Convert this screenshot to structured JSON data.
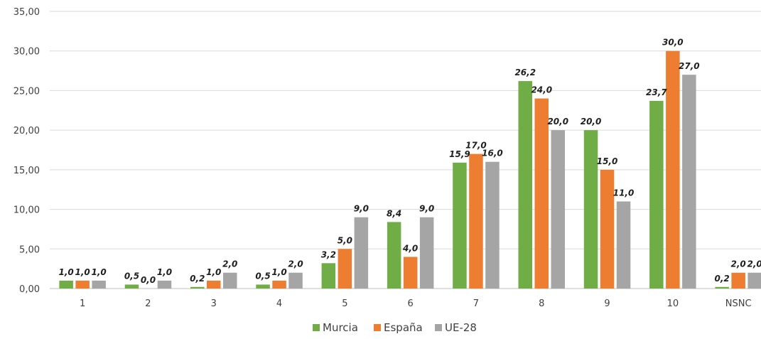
{
  "chart_data": {
    "type": "bar",
    "title": "",
    "xlabel": "",
    "ylabel": "",
    "categories": [
      "1",
      "2",
      "3",
      "4",
      "5",
      "6",
      "7",
      "8",
      "9",
      "10",
      "NSNC"
    ],
    "series": [
      {
        "name": "Murcia",
        "color": "#70ad47",
        "values": [
          1.0,
          0.5,
          0.2,
          0.5,
          3.2,
          8.4,
          15.9,
          26.2,
          20.0,
          23.7,
          0.2
        ],
        "labels": [
          "1,0",
          "0,5",
          "0,2",
          "0,5",
          "3,2",
          "8,4",
          "15,9",
          "26,2",
          "20,0",
          "23,7",
          "0,2"
        ]
      },
      {
        "name": "España",
        "color": "#ed7d31",
        "values": [
          1.0,
          0.0,
          1.0,
          1.0,
          5.0,
          4.0,
          17.0,
          24.0,
          15.0,
          30.0,
          2.0
        ],
        "labels": [
          "1,0",
          "0,0",
          "1,0",
          "1,0",
          "5,0",
          "4,0",
          "17,0",
          "24,0",
          "15,0",
          "30,0",
          "2,0"
        ]
      },
      {
        "name": "UE-28",
        "color": "#a5a5a5",
        "values": [
          1.0,
          1.0,
          2.0,
          2.0,
          9.0,
          9.0,
          16.0,
          20.0,
          11.0,
          27.0,
          2.0
        ],
        "labels": [
          "1,0",
          "1,0",
          "2,0",
          "2,0",
          "9,0",
          "9,0",
          "16,0",
          "20,0",
          "11,0",
          "27,0",
          "2,0"
        ]
      }
    ],
    "ylim": [
      0,
      35
    ],
    "yticks": [
      0,
      5,
      10,
      15,
      20,
      25,
      30,
      35
    ],
    "ytick_labels": [
      "0,00",
      "5,00",
      "10,00",
      "15,00",
      "20,00",
      "25,00",
      "30,00",
      "35,00"
    ],
    "grid": true,
    "legend_position": "bottom-center",
    "colors": {
      "gridline": "#d9d9d9",
      "axis": "#bfbfbf"
    }
  }
}
